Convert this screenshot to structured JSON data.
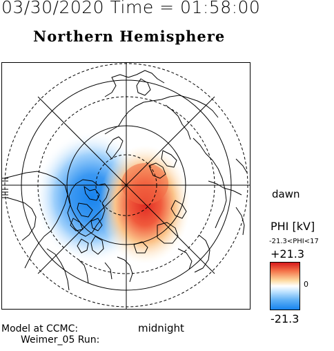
{
  "header": {
    "timestamp": "03/30/2020 Time = 01:58:00",
    "title": "Northern Hemisphere"
  },
  "map": {
    "orientation_labels": {
      "right": "dawn",
      "bottom": "midnight"
    },
    "projection": "polar stereographic, magnetic coordinates",
    "potential_pattern": "two-cell convection: negative cell on dusk side, positive cell on dawn side"
  },
  "colorbar": {
    "title": "PHI [kV]",
    "range_text": "-21.3<PHI<17",
    "max_label": "+21.3",
    "zero_label": "0",
    "min_label": "-21.3",
    "colors": {
      "max": "#d7191c",
      "zero": "#ffffff",
      "min": "#1783ee"
    }
  },
  "credits": {
    "line1": "Model at CCMC:",
    "line2": "Weimer_05 Run:"
  }
}
